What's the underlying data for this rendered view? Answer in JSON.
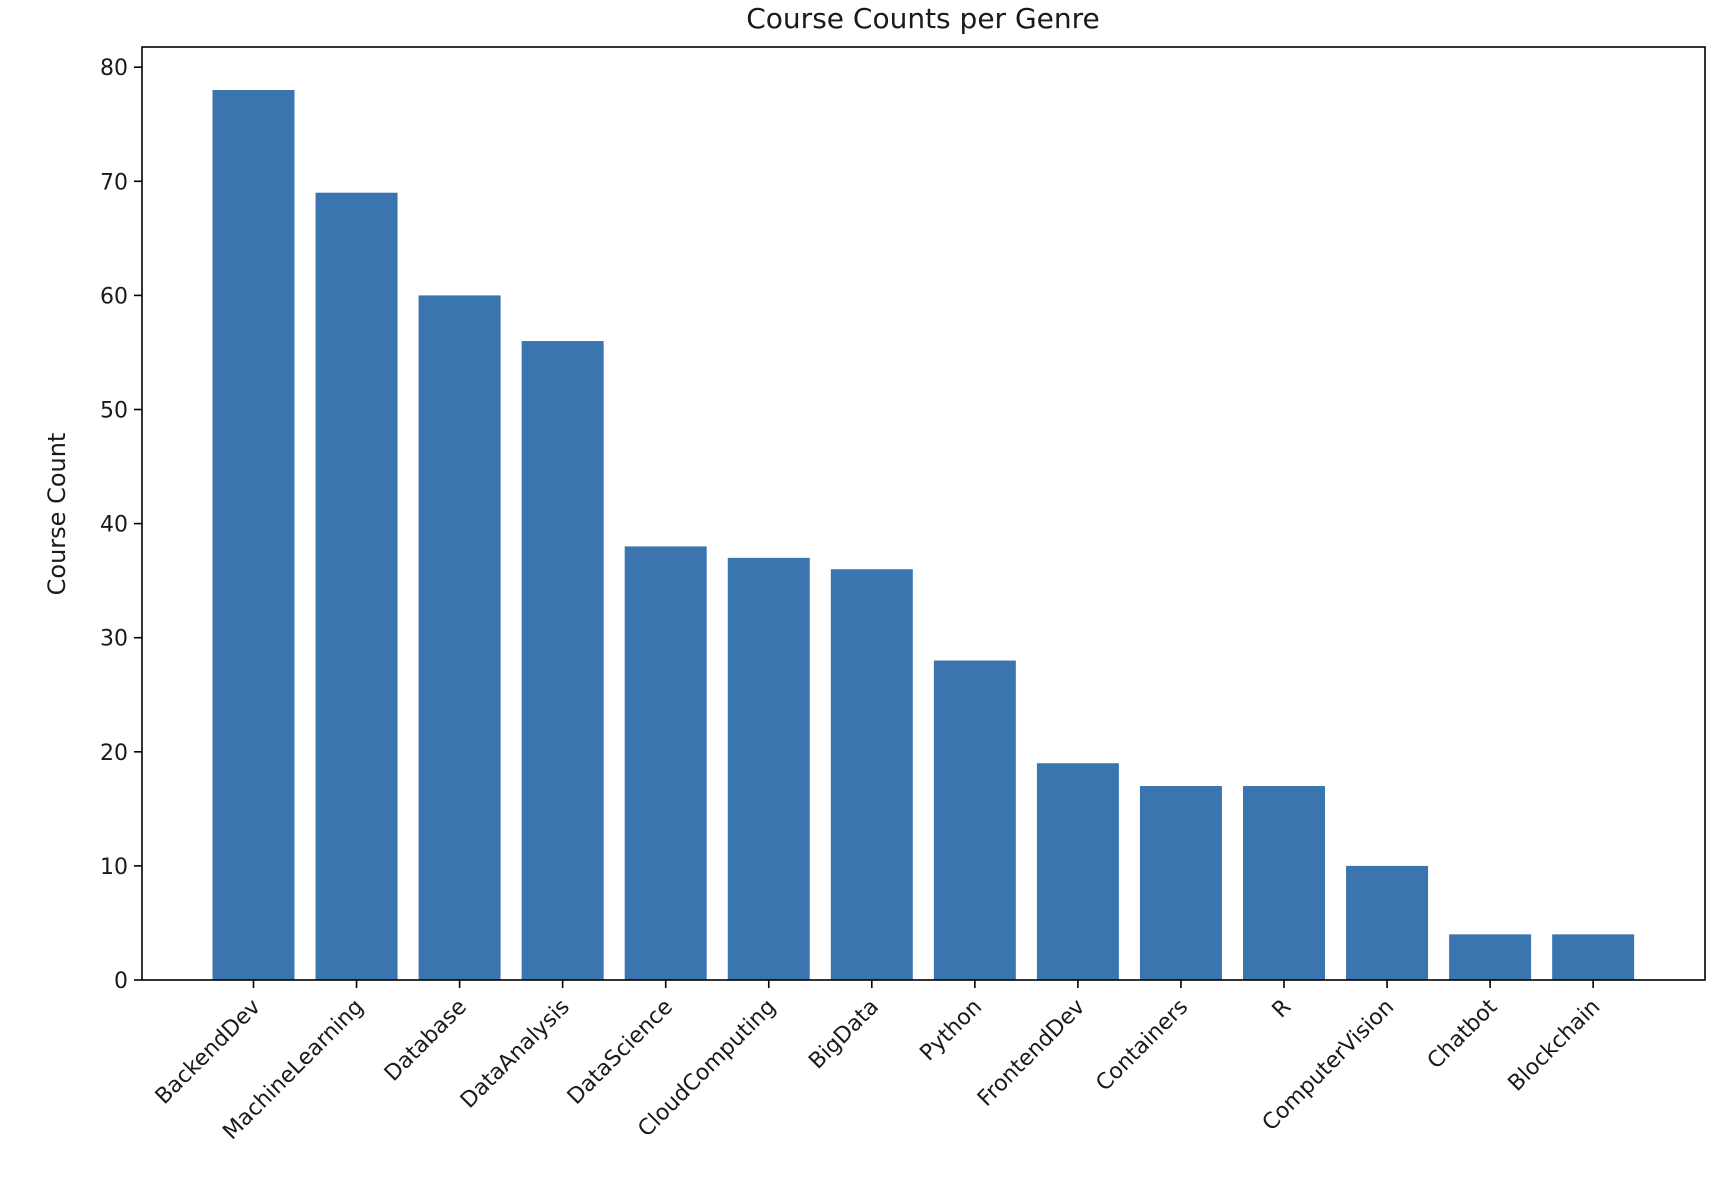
{
  "chart_data": {
    "type": "bar",
    "title": "Course Counts per Genre",
    "xlabel": "",
    "ylabel": "Course Count",
    "categories": [
      "BackendDev",
      "MachineLearning",
      "Database",
      "DataAnalysis",
      "DataScience",
      "CloudComputing",
      "BigData",
      "Python",
      "FrontendDev",
      "Containers",
      "R",
      "ComputerVision",
      "Chatbot",
      "Blockchain"
    ],
    "values": [
      78,
      69,
      60,
      56,
      38,
      37,
      36,
      28,
      19,
      17,
      17,
      10,
      4,
      4
    ],
    "ylim": [
      0,
      82
    ],
    "yticks": [
      0,
      10,
      20,
      30,
      40,
      50,
      60,
      70,
      80
    ],
    "bar_color": "#3b75af",
    "grid": false,
    "legend": "none"
  }
}
